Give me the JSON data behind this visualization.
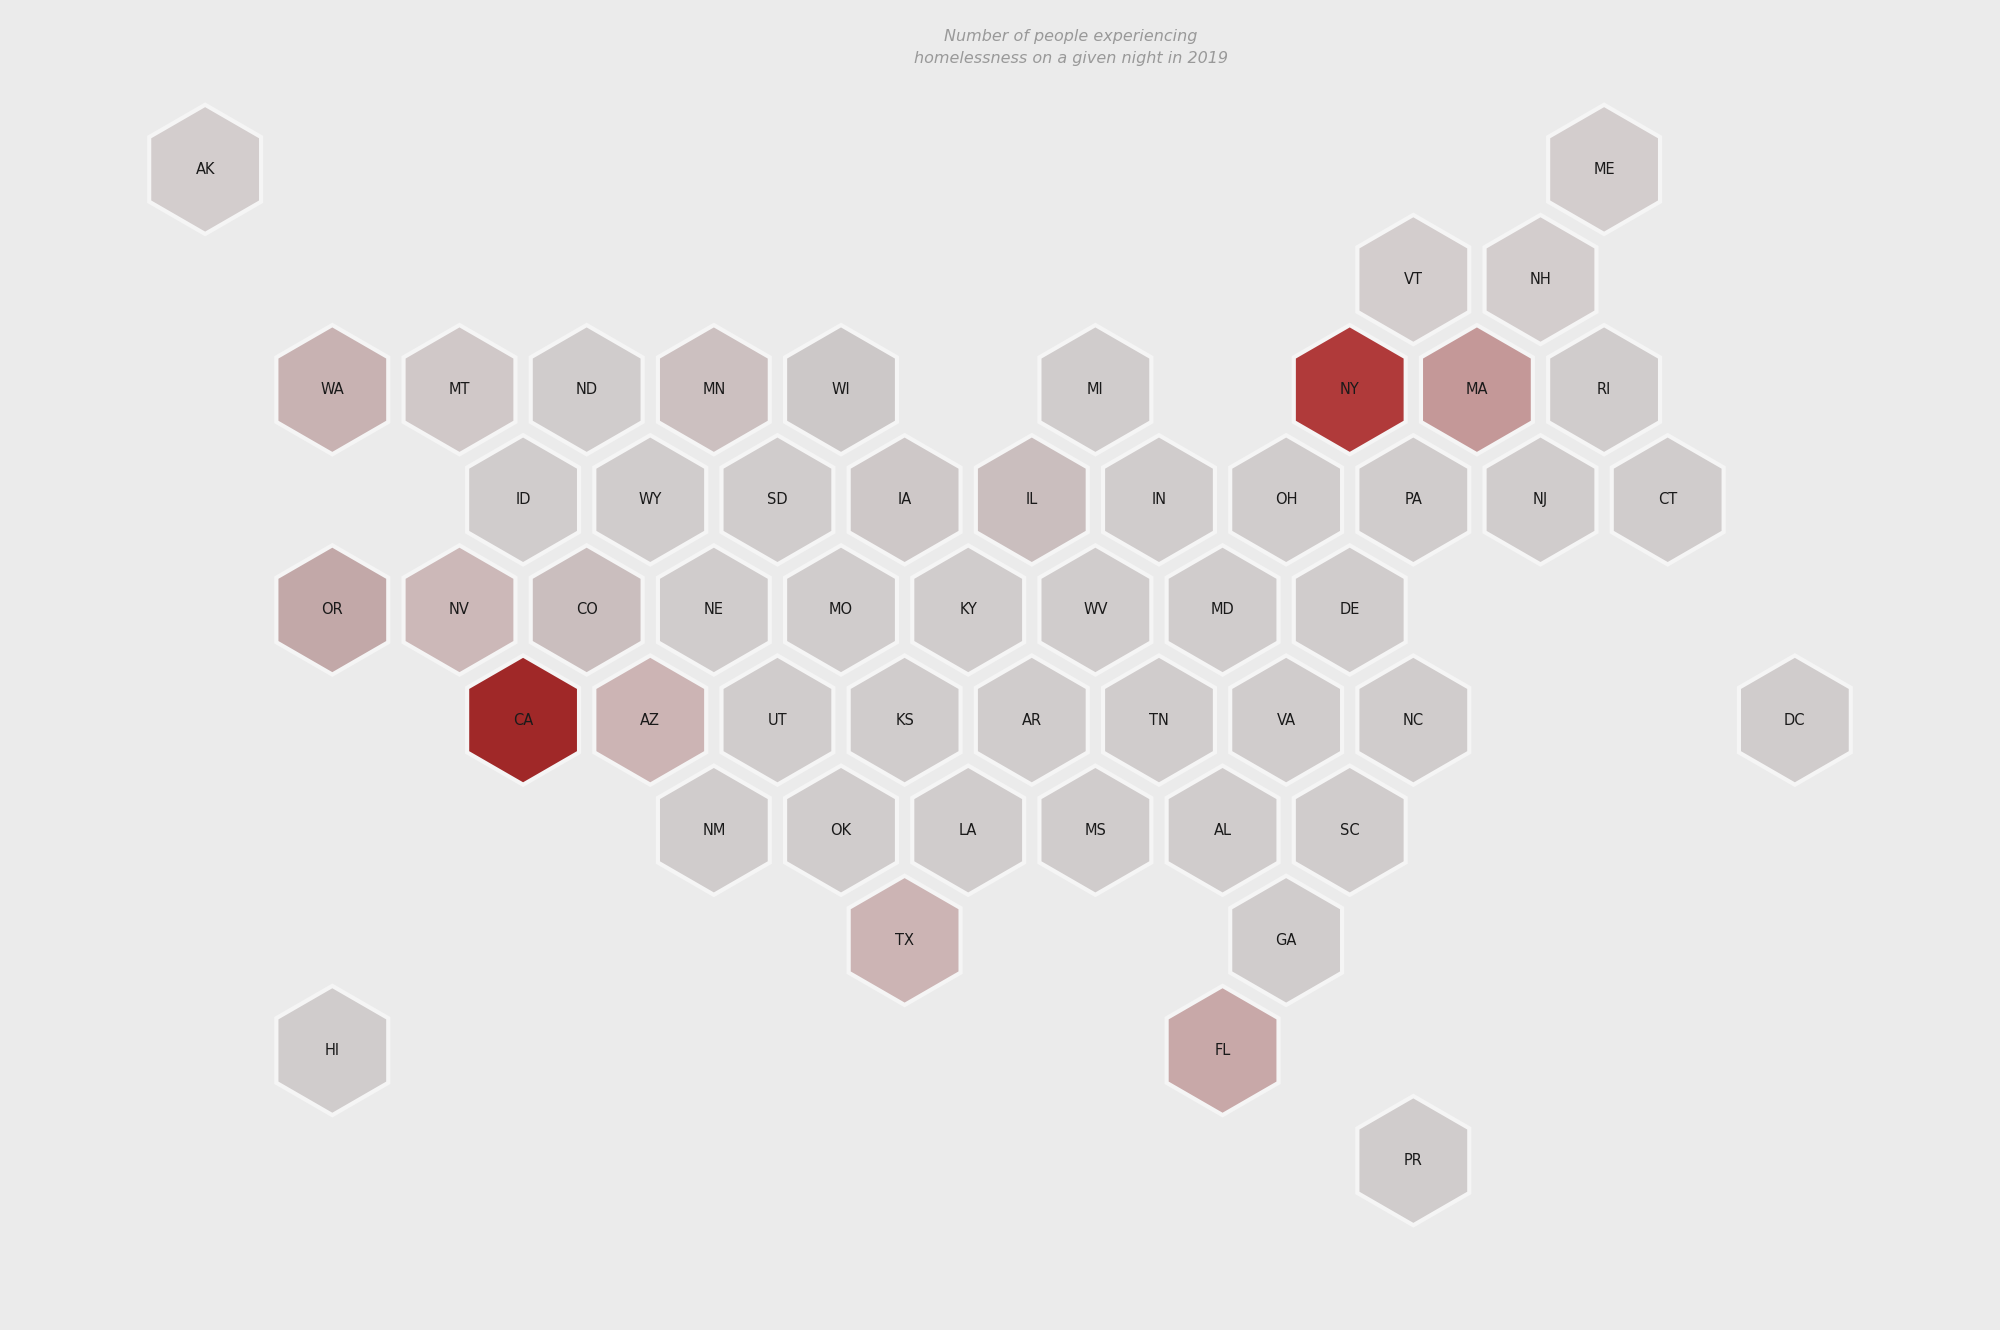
{
  "title": "Number of people experiencing\nhomelessness on a given night in 2019",
  "background_color": "#ebebeb",
  "hex_edge_color": "#f5f5f5",
  "text_color": "#1a1a1a",
  "title_color": "#999999",
  "states": [
    {
      "id": "AK",
      "col": 0,
      "row": 0,
      "color": "#d3cdcd"
    },
    {
      "id": "ME",
      "col": 11,
      "row": 0,
      "color": "#d3cdcd"
    },
    {
      "id": "VT",
      "col": 9,
      "row": 1,
      "color": "#d3cdcd"
    },
    {
      "id": "NH",
      "col": 10,
      "row": 1,
      "color": "#d3cdcd"
    },
    {
      "id": "WA",
      "col": 1,
      "row": 2,
      "color": "#c8b2b2"
    },
    {
      "id": "MT",
      "col": 2,
      "row": 2,
      "color": "#d0c8c8"
    },
    {
      "id": "ND",
      "col": 3,
      "row": 2,
      "color": "#d0cccc"
    },
    {
      "id": "MN",
      "col": 4,
      "row": 2,
      "color": "#ccc0c0"
    },
    {
      "id": "WI",
      "col": 5,
      "row": 2,
      "color": "#ccc8c8"
    },
    {
      "id": "MI",
      "col": 7,
      "row": 2,
      "color": "#d0cccc"
    },
    {
      "id": "NY",
      "col": 9,
      "row": 2,
      "color": "#b03a3a"
    },
    {
      "id": "MA",
      "col": 10,
      "row": 2,
      "color": "#c49898"
    },
    {
      "id": "RI",
      "col": 11,
      "row": 2,
      "color": "#d0cccc"
    },
    {
      "id": "ID",
      "col": 2,
      "row": 3,
      "color": "#d0cccc"
    },
    {
      "id": "WY",
      "col": 3,
      "row": 3,
      "color": "#d0cccc"
    },
    {
      "id": "SD",
      "col": 4,
      "row": 3,
      "color": "#d0cccc"
    },
    {
      "id": "IA",
      "col": 5,
      "row": 3,
      "color": "#cec8c8"
    },
    {
      "id": "IL",
      "col": 6,
      "row": 3,
      "color": "#cabebe"
    },
    {
      "id": "IN",
      "col": 7,
      "row": 3,
      "color": "#d0cccc"
    },
    {
      "id": "OH",
      "col": 8,
      "row": 3,
      "color": "#d0cccc"
    },
    {
      "id": "PA",
      "col": 9,
      "row": 3,
      "color": "#d0cccc"
    },
    {
      "id": "NJ",
      "col": 10,
      "row": 3,
      "color": "#d0cccc"
    },
    {
      "id": "CT",
      "col": 11,
      "row": 3,
      "color": "#d0cccc"
    },
    {
      "id": "OR",
      "col": 1,
      "row": 4,
      "color": "#c2a8a8"
    },
    {
      "id": "NV",
      "col": 2,
      "row": 4,
      "color": "#ccb8b8"
    },
    {
      "id": "CO",
      "col": 3,
      "row": 4,
      "color": "#cabebe"
    },
    {
      "id": "NE",
      "col": 4,
      "row": 4,
      "color": "#d0cccc"
    },
    {
      "id": "MO",
      "col": 5,
      "row": 4,
      "color": "#d0cccc"
    },
    {
      "id": "KY",
      "col": 6,
      "row": 4,
      "color": "#d0cccc"
    },
    {
      "id": "WV",
      "col": 7,
      "row": 4,
      "color": "#d0cccc"
    },
    {
      "id": "MD",
      "col": 8,
      "row": 4,
      "color": "#d0cccc"
    },
    {
      "id": "DE",
      "col": 9,
      "row": 4,
      "color": "#d0cccc"
    },
    {
      "id": "CA",
      "col": 2,
      "row": 5,
      "color": "#a02828"
    },
    {
      "id": "AZ",
      "col": 3,
      "row": 5,
      "color": "#ccb4b4"
    },
    {
      "id": "UT",
      "col": 4,
      "row": 5,
      "color": "#d0cccc"
    },
    {
      "id": "KS",
      "col": 5,
      "row": 5,
      "color": "#d0cccc"
    },
    {
      "id": "AR",
      "col": 6,
      "row": 5,
      "color": "#d0cccc"
    },
    {
      "id": "TN",
      "col": 7,
      "row": 5,
      "color": "#d0cccc"
    },
    {
      "id": "VA",
      "col": 8,
      "row": 5,
      "color": "#d0cccc"
    },
    {
      "id": "NC",
      "col": 9,
      "row": 5,
      "color": "#d0cccc"
    },
    {
      "id": "DC",
      "col": 12,
      "row": 5,
      "color": "#d0cccc"
    },
    {
      "id": "NM",
      "col": 4,
      "row": 6,
      "color": "#d0cccc"
    },
    {
      "id": "OK",
      "col": 5,
      "row": 6,
      "color": "#d0cccc"
    },
    {
      "id": "LA",
      "col": 6,
      "row": 6,
      "color": "#d0cccc"
    },
    {
      "id": "MS",
      "col": 7,
      "row": 6,
      "color": "#d0cccc"
    },
    {
      "id": "AL",
      "col": 8,
      "row": 6,
      "color": "#d0cccc"
    },
    {
      "id": "SC",
      "col": 9,
      "row": 6,
      "color": "#d0cccc"
    },
    {
      "id": "TX",
      "col": 5,
      "row": 7,
      "color": "#ccb4b4"
    },
    {
      "id": "GA",
      "col": 8,
      "row": 7,
      "color": "#d0cccc"
    },
    {
      "id": "HI",
      "col": 1,
      "row": 8,
      "color": "#d0cccc"
    },
    {
      "id": "FL",
      "col": 8,
      "row": 8,
      "color": "#c8a8a8"
    },
    {
      "id": "PR",
      "col": 9,
      "row": 9,
      "color": "#d0cccc"
    }
  ]
}
